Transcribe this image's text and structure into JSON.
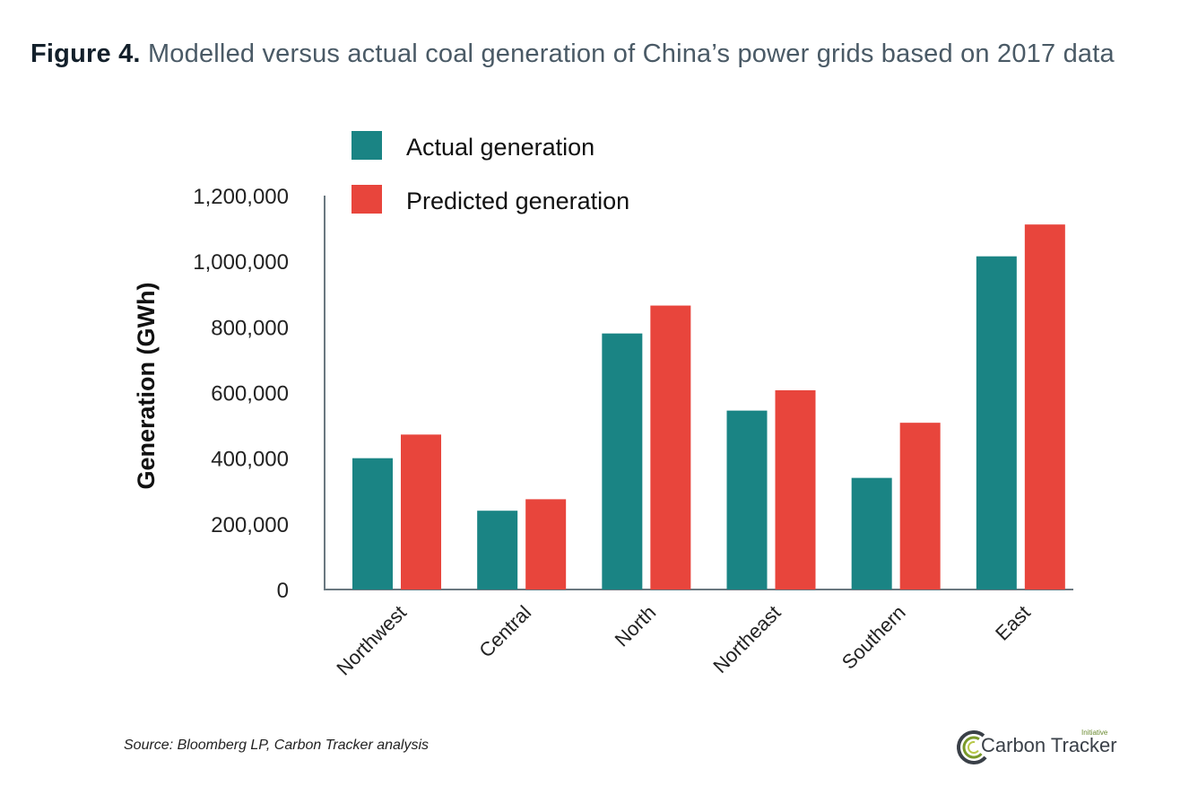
{
  "figure": {
    "label": "Figure 4.",
    "title": "Modelled versus actual coal generation of China’s power grids based on 2017 data"
  },
  "chart_data": {
    "type": "bar",
    "categories": [
      "Northwest",
      "Central",
      "North",
      "Northeast",
      "Southern",
      "East"
    ],
    "series": [
      {
        "name": "Actual generation",
        "color": "#1a8484",
        "values": [
          400000,
          240000,
          780000,
          545000,
          340000,
          1015000
        ]
      },
      {
        "name": "Predicted generation",
        "color": "#e8453c",
        "values": [
          472000,
          275000,
          865000,
          607000,
          508000,
          1112000
        ]
      }
    ],
    "ylabel": "Generation (GWh)",
    "xlabel": "",
    "ylim": [
      0,
      1200000
    ],
    "yticks": [
      "0",
      "200,000",
      "400,000",
      "600,000",
      "800,000",
      "1,000,000",
      "1,200,000"
    ],
    "ytick_values": [
      0,
      200000,
      400000,
      600000,
      800000,
      1000000,
      1200000
    ],
    "grid": false,
    "legend_position": "top-left"
  },
  "footer": {
    "source": "Source: Bloomberg LP, Carbon Tracker analysis",
    "logo_text": "Carbon Tracker",
    "logo_small": "Initiative",
    "logo_color": "#7a9a2a"
  }
}
